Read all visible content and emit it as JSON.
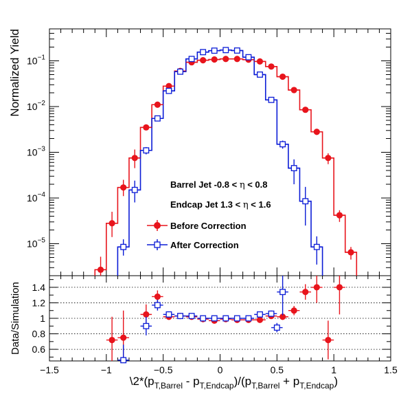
{
  "chart_data": [
    {
      "type": "line",
      "panel": "top",
      "ylabel": "Normalized Yield",
      "yscale": "log",
      "ylim": [
        2e-06,
        0.5
      ],
      "xlim": [
        -1.5,
        1.5
      ],
      "ytick_labels": [
        "10^{-5}",
        "10^{-4}",
        "10^{-3}",
        "10^{-2}",
        "10^{-1}"
      ],
      "annotations": [
        {
          "pre": "Barrel Jet -0.8 < ",
          "sym": "η",
          "post": " < 0.8"
        },
        {
          "pre": "Endcap Jet 1.3 < ",
          "sym": "η",
          "post": " < 1.6"
        }
      ],
      "legend": {
        "placement": "center"
      },
      "bin_edges": [
        -1.05,
        -0.95,
        -0.85,
        -0.75,
        -0.65,
        -0.55,
        -0.45,
        -0.35,
        -0.25,
        -0.15,
        -0.05,
        0.05,
        0.15,
        0.25,
        0.35,
        0.45,
        0.55,
        0.65,
        0.75,
        0.85,
        0.95,
        1.05,
        1.15
      ],
      "series": [
        {
          "name": "Before Correction",
          "color": "#e8141c",
          "marker": "filled-circle",
          "hist": [
            2.7e-06,
            2.8e-05,
            0.00017,
            0.00075,
            0.0035,
            0.011,
            0.028,
            0.06,
            0.093,
            0.103,
            0.107,
            0.11,
            0.11,
            0.106,
            0.097,
            0.075,
            0.045,
            0.023,
            0.0085,
            0.0028,
            0.00075,
            4.2e-05,
            6.5e-06
          ],
          "points": [
            {
              "x": -1.05,
              "y": 2.7e-06,
              "elo": 1.5e-06,
              "ehi": 2.5e-06
            },
            {
              "x": -0.95,
              "y": 2.8e-05,
              "elo": 1.4e-05,
              "ehi": 2.2e-05
            },
            {
              "x": -0.85,
              "y": 0.00017,
              "elo": 6e-05,
              "ehi": 8e-05
            },
            {
              "x": -0.75,
              "y": 0.00075,
              "elo": 0.0003,
              "ehi": 0.0004
            },
            {
              "x": -0.65,
              "y": 0.0035,
              "elo": 0.0004,
              "ehi": 0.0004
            },
            {
              "x": -0.55,
              "y": 0.011,
              "elo": 0.001,
              "ehi": 0.001
            },
            {
              "x": -0.45,
              "y": 0.028,
              "elo": 0.002,
              "ehi": 0.002
            },
            {
              "x": -0.35,
              "y": 0.06,
              "elo": 0.003,
              "ehi": 0.003
            },
            {
              "x": -0.25,
              "y": 0.093,
              "elo": 0.004,
              "ehi": 0.004
            },
            {
              "x": -0.15,
              "y": 0.103,
              "elo": 0.004,
              "ehi": 0.004
            },
            {
              "x": -0.05,
              "y": 0.107,
              "elo": 0.004,
              "ehi": 0.004
            },
            {
              "x": 0.05,
              "y": 0.11,
              "elo": 0.004,
              "ehi": 0.004
            },
            {
              "x": 0.15,
              "y": 0.11,
              "elo": 0.004,
              "ehi": 0.004
            },
            {
              "x": 0.25,
              "y": 0.106,
              "elo": 0.004,
              "ehi": 0.004
            },
            {
              "x": 0.35,
              "y": 0.097,
              "elo": 0.004,
              "ehi": 0.004
            },
            {
              "x": 0.45,
              "y": 0.075,
              "elo": 0.003,
              "ehi": 0.003
            },
            {
              "x": 0.55,
              "y": 0.045,
              "elo": 0.002,
              "ehi": 0.002
            },
            {
              "x": 0.65,
              "y": 0.023,
              "elo": 0.0015,
              "ehi": 0.0015
            },
            {
              "x": 0.75,
              "y": 0.0085,
              "elo": 0.0008,
              "ehi": 0.0008
            },
            {
              "x": 0.85,
              "y": 0.0028,
              "elo": 0.0004,
              "ehi": 0.0004
            },
            {
              "x": 0.95,
              "y": 0.00075,
              "elo": 0.0002,
              "ehi": 0.0002
            },
            {
              "x": 1.05,
              "y": 4.2e-05,
              "elo": 1.2e-05,
              "ehi": 1.2e-05
            },
            {
              "x": 1.15,
              "y": 6.5e-06,
              "elo": 2e-06,
              "ehi": 2e-06
            }
          ]
        },
        {
          "name": "After Correction",
          "color": "#0a1bd6",
          "marker": "open-square",
          "hist": [
            null,
            null,
            8.5e-06,
            0.00015,
            0.0011,
            0.0055,
            0.022,
            0.058,
            0.11,
            0.155,
            0.167,
            0.172,
            0.168,
            0.12,
            0.05,
            0.014,
            0.0015,
            0.00045,
            8.5e-05,
            8.5e-06,
            null,
            null,
            null
          ],
          "points": [
            {
              "x": -0.85,
              "y": 8.5e-06,
              "elo": 3e-06,
              "ehi": 4e-06
            },
            {
              "x": -0.75,
              "y": 0.00015,
              "elo": 7e-05,
              "ehi": 9e-05
            },
            {
              "x": -0.65,
              "y": 0.0011,
              "elo": 0.0002,
              "ehi": 0.0002
            },
            {
              "x": -0.55,
              "y": 0.0055,
              "elo": 0.0006,
              "ehi": 0.0006
            },
            {
              "x": -0.45,
              "y": 0.022,
              "elo": 0.0015,
              "ehi": 0.0015
            },
            {
              "x": -0.35,
              "y": 0.058,
              "elo": 0.003,
              "ehi": 0.003
            },
            {
              "x": -0.25,
              "y": 0.11,
              "elo": 0.004,
              "ehi": 0.004
            },
            {
              "x": -0.15,
              "y": 0.155,
              "elo": 0.005,
              "ehi": 0.005
            },
            {
              "x": -0.05,
              "y": 0.167,
              "elo": 0.005,
              "ehi": 0.005
            },
            {
              "x": 0.05,
              "y": 0.172,
              "elo": 0.005,
              "ehi": 0.005
            },
            {
              "x": 0.15,
              "y": 0.168,
              "elo": 0.005,
              "ehi": 0.005
            },
            {
              "x": 0.25,
              "y": 0.12,
              "elo": 0.004,
              "ehi": 0.004
            },
            {
              "x": 0.35,
              "y": 0.05,
              "elo": 0.003,
              "ehi": 0.003
            },
            {
              "x": 0.45,
              "y": 0.014,
              "elo": 0.0012,
              "ehi": 0.0012
            },
            {
              "x": 0.55,
              "y": 0.0015,
              "elo": 0.0003,
              "ehi": 0.0003
            },
            {
              "x": 0.65,
              "y": 0.00045,
              "elo": 0.00025,
              "ehi": 0.00025
            },
            {
              "x": 0.75,
              "y": 8.5e-05,
              "elo": 6e-05,
              "ehi": 9e-05
            },
            {
              "x": 0.85,
              "y": 8.5e-06,
              "elo": 5e-06,
              "ehi": 6e-06
            }
          ]
        }
      ]
    },
    {
      "type": "scatter",
      "panel": "bottom",
      "ylabel": "Data/Simulation",
      "ylim": [
        0.45,
        1.55
      ],
      "xlim": [
        -1.5,
        1.5
      ],
      "yticks": [
        0.6,
        0.8,
        1.0,
        1.2,
        1.4
      ],
      "ytick_labels": [
        "0.6",
        "0.8",
        "1",
        "1.2",
        "1.4"
      ],
      "xticks": [
        -1.5,
        -1.0,
        -0.5,
        0,
        0.5,
        1.0,
        1.5
      ],
      "xtick_labels": [
        "−1.5",
        "−1",
        "−0.5",
        "0",
        "0.5",
        "1",
        "1.5"
      ],
      "xlabel": "\\2*(p_{T,Barrel} - p_{T,Endcap})/(p_{T,Barrel} + p_{T,Endcap})",
      "xlabel_parts": {
        "lead": "\\2*(p",
        "sub1": "T,Barrel",
        "mid": " - p",
        "sub2": "T,Endcap",
        "mid2": ")/(p",
        "sub3": "T,Barrel",
        "mid3": " + p",
        "sub4": "T,Endcap",
        "tail": ")"
      },
      "grid": "dotted-horizontal",
      "series": [
        {
          "name": "Before Correction",
          "color": "#e8141c",
          "marker": "filled-circle",
          "points": [
            {
              "x": -0.95,
              "y": 0.72,
              "e": 0.3
            },
            {
              "x": -0.85,
              "y": 0.75,
              "e": 0.35
            },
            {
              "x": -0.65,
              "y": 1.05,
              "e": 0.13
            },
            {
              "x": -0.55,
              "y": 1.28,
              "e": 0.08
            },
            {
              "x": -0.45,
              "y": 1.02,
              "e": 0.04
            },
            {
              "x": -0.35,
              "y": 1.03,
              "e": 0.03
            },
            {
              "x": -0.25,
              "y": 1.02,
              "e": 0.03
            },
            {
              "x": -0.15,
              "y": 0.99,
              "e": 0.02
            },
            {
              "x": -0.05,
              "y": 0.97,
              "e": 0.02
            },
            {
              "x": 0.05,
              "y": 0.99,
              "e": 0.02
            },
            {
              "x": 0.15,
              "y": 0.98,
              "e": 0.02
            },
            {
              "x": 0.25,
              "y": 0.98,
              "e": 0.02
            },
            {
              "x": 0.35,
              "y": 0.98,
              "e": 0.02
            },
            {
              "x": 0.45,
              "y": 1.03,
              "e": 0.03
            },
            {
              "x": 0.55,
              "y": 1.02,
              "e": 0.04
            },
            {
              "x": 0.65,
              "y": 1.1,
              "e": 0.06
            },
            {
              "x": 0.75,
              "y": 1.34,
              "e": 0.1
            },
            {
              "x": 0.85,
              "y": 1.4,
              "e": 0.2
            },
            {
              "x": 0.95,
              "y": 0.72,
              "e": 0.25
            },
            {
              "x": 1.05,
              "y": 1.4,
              "e": 0.35
            }
          ]
        },
        {
          "name": "After Correction",
          "color": "#0a1bd6",
          "marker": "open-square",
          "points": [
            {
              "x": -0.85,
              "y": 0.46,
              "e": 0.2
            },
            {
              "x": -0.65,
              "y": 0.9,
              "e": 0.12
            },
            {
              "x": -0.55,
              "y": 1.17,
              "e": 0.07
            },
            {
              "x": -0.45,
              "y": 1.05,
              "e": 0.04
            },
            {
              "x": -0.35,
              "y": 1.03,
              "e": 0.03
            },
            {
              "x": -0.25,
              "y": 1.03,
              "e": 0.02
            },
            {
              "x": -0.15,
              "y": 1.0,
              "e": 0.02
            },
            {
              "x": -0.05,
              "y": 1.0,
              "e": 0.02
            },
            {
              "x": 0.05,
              "y": 1.0,
              "e": 0.02
            },
            {
              "x": 0.15,
              "y": 1.0,
              "e": 0.02
            },
            {
              "x": 0.25,
              "y": 1.0,
              "e": 0.02
            },
            {
              "x": 0.35,
              "y": 1.05,
              "e": 0.03
            },
            {
              "x": 0.45,
              "y": 1.06,
              "e": 0.04
            },
            {
              "x": 0.5,
              "y": 0.88,
              "e": 0.06
            },
            {
              "x": 0.55,
              "y": 1.34,
              "e": 0.3
            }
          ]
        }
      ]
    }
  ]
}
